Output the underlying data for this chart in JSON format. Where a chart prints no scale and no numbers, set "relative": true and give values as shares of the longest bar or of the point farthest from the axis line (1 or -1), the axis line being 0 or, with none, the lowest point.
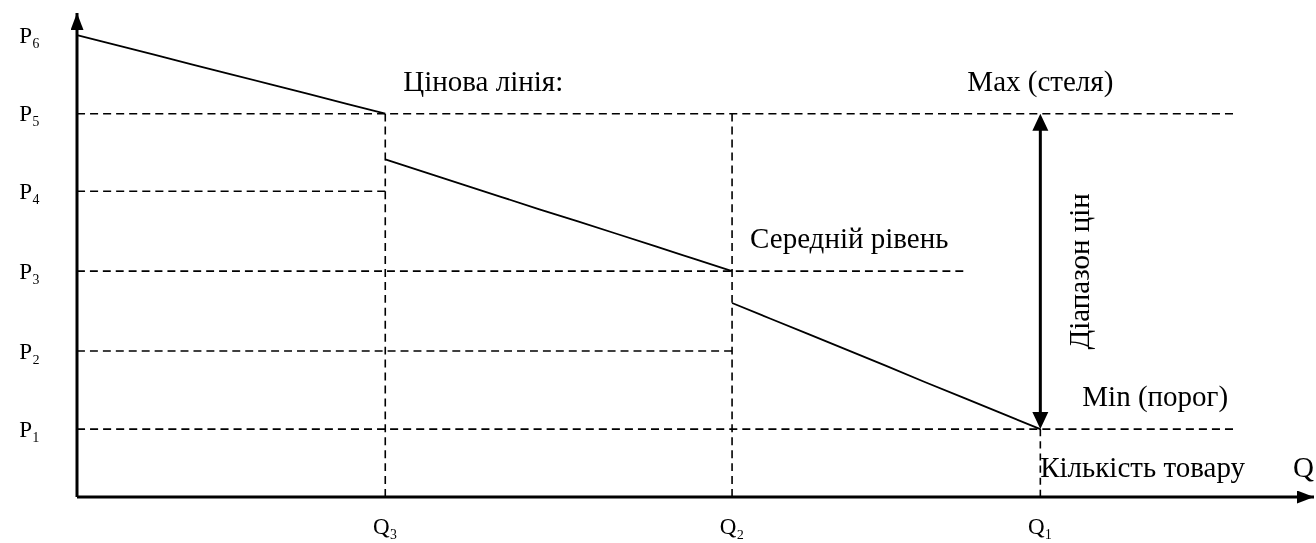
{
  "chart_data": {
    "type": "line",
    "relative": true,
    "xlabel": "Q",
    "categories": [
      null,
      null,
      null,
      null,
      null,
      null,
      null,
      null,
      "Q₃",
      null,
      null,
      null,
      null,
      null,
      null,
      null,
      null,
      "Q₂",
      null,
      null,
      null,
      null,
      null,
      null,
      null,
      "Q₁",
      null,
      null,
      null,
      null,
      null
    ],
    "series": [
      {
        "color": "#000000",
        "line_style": "dashed",
        "values": [
          0.83,
          0.83,
          0.83,
          0.83,
          0.83,
          0.83,
          0.83,
          0.83,
          0.83,
          0.83,
          0.83,
          0.83,
          0.83,
          0.83,
          0.83,
          0.83,
          0.83,
          0.83,
          0.83,
          0.83,
          0.83,
          0.83,
          0.83,
          0.83,
          0.83,
          0.83,
          0.83,
          0.83,
          0.83,
          0.83,
          0.83
        ]
      },
      {
        "color": "#000000",
        "line_style": "dashed",
        "values": [
          0.662,
          0.662,
          0.662,
          0.662,
          0.662,
          0.662,
          0.662,
          0.662,
          0.662,
          null,
          null,
          null,
          null,
          null,
          null,
          null,
          null,
          null,
          null,
          null,
          null,
          null,
          null,
          null,
          null,
          null,
          null,
          null,
          null,
          null,
          null
        ]
      },
      {
        "color": "#000000",
        "line_style": "dashed",
        "values": [
          0.489,
          0.489,
          0.489,
          0.489,
          0.489,
          0.489,
          0.489,
          0.489,
          0.489,
          0.489,
          0.489,
          0.489,
          0.489,
          0.489,
          0.489,
          0.489,
          0.489,
          0.489,
          0.489,
          0.489,
          0.489,
          0.489,
          0.489,
          0.489,
          null,
          null,
          null,
          null,
          null,
          null,
          null
        ]
      },
      {
        "color": "#000000",
        "line_style": "dashed",
        "values": [
          0.316,
          0.316,
          0.316,
          0.316,
          0.316,
          0.316,
          0.316,
          0.316,
          0.316,
          0.316,
          0.316,
          0.316,
          0.316,
          0.316,
          0.316,
          0.316,
          0.316,
          0.316,
          null,
          null,
          null,
          null,
          null,
          null,
          null,
          null,
          null,
          null,
          null,
          null,
          null
        ]
      },
      {
        "color": "#000000",
        "line_style": "dashed",
        "values": [
          0.147,
          0.147,
          0.147,
          0.147,
          0.147,
          0.147,
          0.147,
          0.147,
          0.147,
          0.147,
          0.147,
          0.147,
          0.147,
          0.147,
          0.147,
          0.147,
          0.147,
          0.147,
          0.147,
          0.147,
          0.147,
          0.147,
          0.147,
          0.147,
          0.147,
          0.147,
          0.147,
          0.147,
          0.147,
          0.147,
          0.147
        ]
      },
      {
        "color": "#000000",
        "line_style": "solid",
        "values": [
          1,
          0.979,
          0.958,
          0.936,
          0.915,
          0.894,
          0.873,
          0.851,
          0.83,
          null,
          null,
          null,
          null,
          null,
          null,
          null,
          null,
          null,
          null,
          null,
          null,
          null,
          null,
          null,
          null,
          null,
          null,
          null,
          null,
          null,
          null
        ]
      },
      {
        "color": "#000000",
        "line_style": "solid",
        "values": [
          null,
          null,
          null,
          null,
          null,
          null,
          null,
          null,
          0.731,
          0.704,
          0.677,
          0.65,
          0.623,
          0.597,
          0.57,
          0.543,
          0.516,
          0.489,
          null,
          null,
          null,
          null,
          null,
          null,
          null,
          null,
          null,
          null,
          null,
          null,
          null
        ]
      },
      {
        "color": "#000000",
        "line_style": "solid",
        "values": [
          null,
          null,
          null,
          null,
          null,
          null,
          null,
          null,
          null,
          null,
          null,
          null,
          null,
          null,
          null,
          null,
          null,
          0.42,
          0.386,
          0.352,
          0.318,
          0.284,
          0.249,
          0.215,
          0.181,
          0.147,
          null,
          null,
          null,
          null,
          null
        ]
      }
    ],
    "ref_lines": [
      {
        "axis": "x",
        "value": "Q₃",
        "color": "#000000",
        "line_style": "dashed"
      },
      {
        "axis": "x",
        "value": "Q₂",
        "color": "#000000",
        "line_style": "dashed"
      },
      {
        "axis": "x",
        "value": "Q₁",
        "color": "#000000",
        "line_style": "dashed"
      }
    ],
    "annotations": [
      "P₆",
      "P₅",
      "P₄",
      "P₃",
      "P₂",
      "P₁",
      {
        "text": "Цінова лінія:",
        "x": "Q₃",
        "y": 0.83
      },
      {
        "text": "Max (стеля)",
        "x": "Q₁",
        "y": 0.83
      },
      {
        "text": "Середній рівень",
        "x": "Q₂",
        "y": 0.489
      },
      {
        "text": "Min (порог)",
        "x": "Q₁",
        "y": 0.147
      },
      "Діапазон цін",
      "Кількість товару"
    ]
  }
}
